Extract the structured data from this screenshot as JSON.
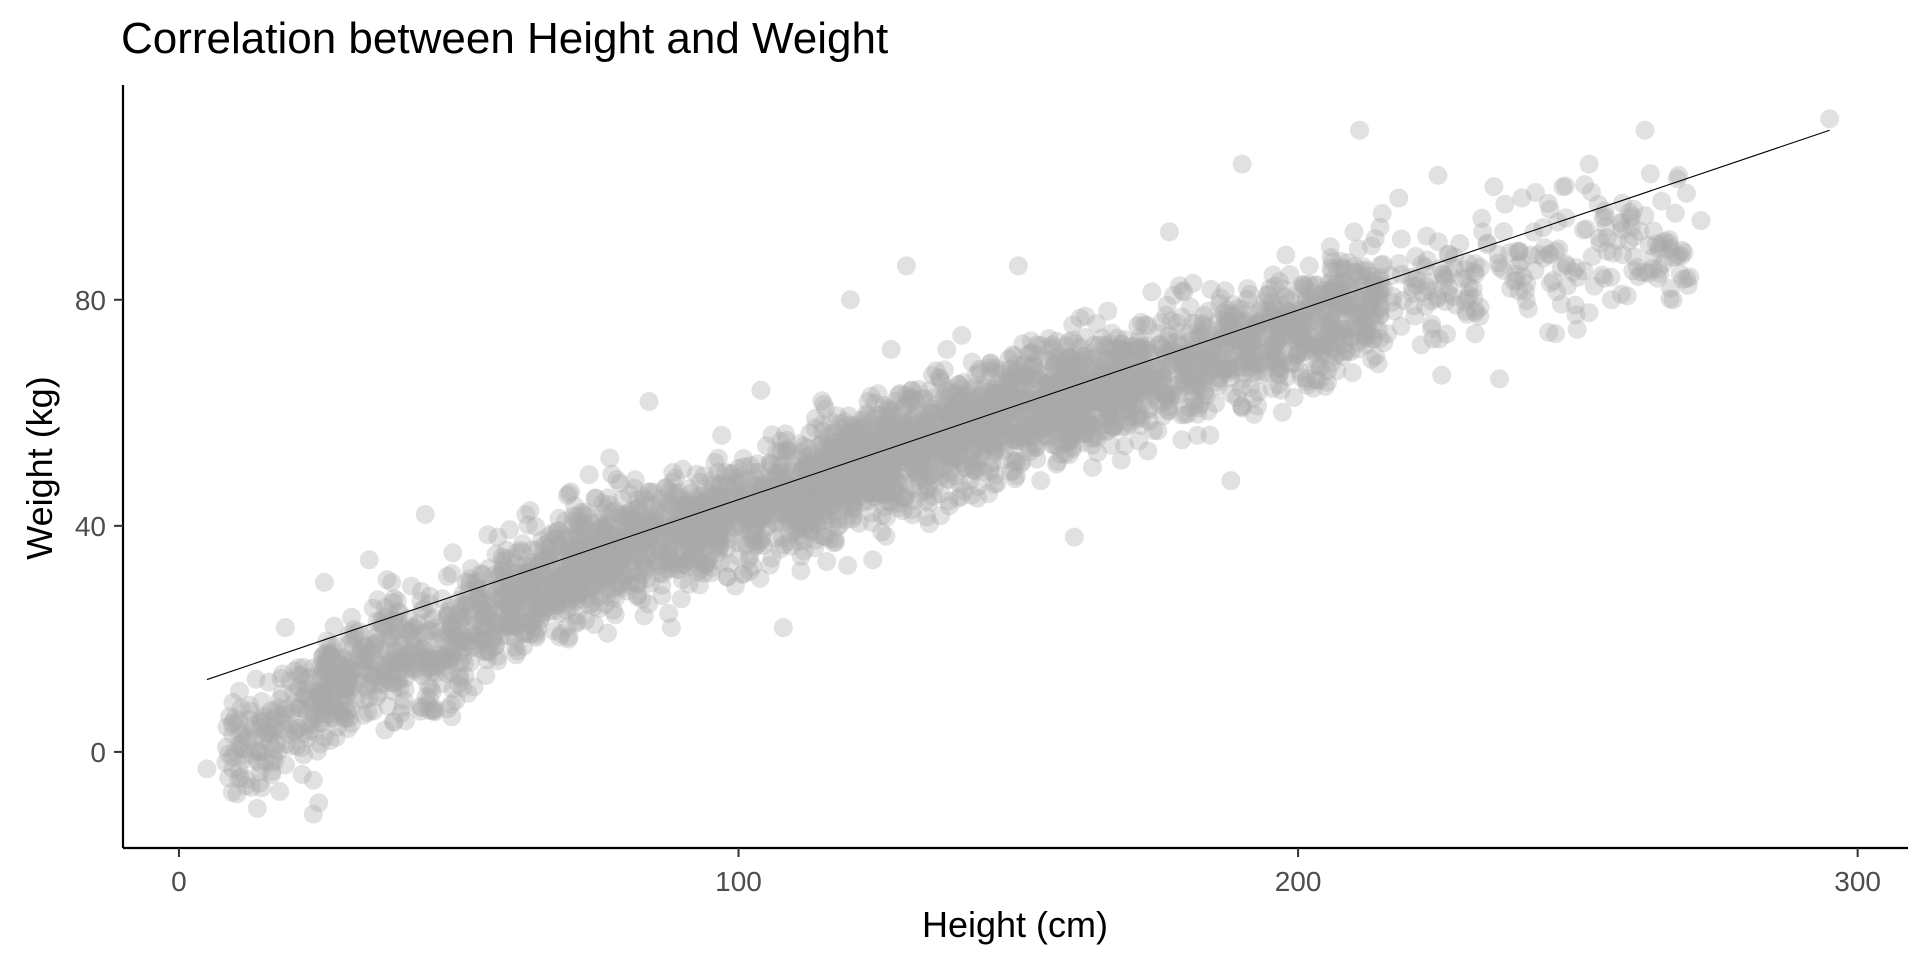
{
  "chart_data": {
    "type": "scatter",
    "title": "Correlation between Height and Weight",
    "xlabel": "Height (cm)",
    "ylabel": "Weight (kg)",
    "xlim": [
      -10,
      309
    ],
    "ylim": [
      -17,
      118
    ],
    "x_ticks": [
      0,
      100,
      200,
      300
    ],
    "y_ticks": [
      0,
      40,
      80
    ],
    "x_tick_labels": [
      "0",
      "100",
      "200",
      "300"
    ],
    "y_tick_labels": [
      "0",
      "40",
      "80"
    ],
    "grid": false,
    "legend": "none",
    "point_color": "#a9a9a9",
    "point_alpha": 0.35,
    "line_color": "#000000",
    "point_count_approx": 4000,
    "trend_line": {
      "x": [
        5,
        295
      ],
      "y": [
        12.8,
        110
      ]
    },
    "trend_summary": "Points follow a linear trend with a slight S-shaped curve: weight near -5..10 kg at heights 5-25 cm, ~15-20 kg at 40-50 cm, ~40 kg at 80-100 cm, ~55-60 kg at 130-150 cm, ~70 kg at 180 cm, ~80 kg at 210 cm, ~90 kg at 250-275 cm; spread about 8-10 kg around the trend.",
    "points": [
      [
        5,
        -3
      ],
      [
        10,
        6
      ],
      [
        12,
        -6
      ],
      [
        14,
        -10
      ],
      [
        15,
        2
      ],
      [
        17,
        4
      ],
      [
        18,
        -7
      ],
      [
        19,
        22
      ],
      [
        22,
        -4
      ],
      [
        23,
        12
      ],
      [
        24,
        -5
      ],
      [
        24,
        -11
      ],
      [
        25,
        -9
      ],
      [
        26,
        30
      ],
      [
        27,
        2
      ],
      [
        29,
        10
      ],
      [
        31,
        20
      ],
      [
        33,
        16
      ],
      [
        34,
        34
      ],
      [
        35,
        12
      ],
      [
        37,
        20
      ],
      [
        38,
        30
      ],
      [
        39,
        18
      ],
      [
        40,
        8
      ],
      [
        42,
        22
      ],
      [
        44,
        42
      ],
      [
        46,
        16
      ],
      [
        48,
        24
      ],
      [
        50,
        12
      ],
      [
        52,
        30
      ],
      [
        55,
        22
      ],
      [
        57,
        38
      ],
      [
        60,
        20
      ],
      [
        62,
        42
      ],
      [
        65,
        35
      ],
      [
        67,
        30
      ],
      [
        70,
        46
      ],
      [
        72,
        40
      ],
      [
        75,
        36
      ],
      [
        77,
        52
      ],
      [
        80,
        38
      ],
      [
        82,
        30
      ],
      [
        84,
        62
      ],
      [
        86,
        44
      ],
      [
        88,
        22
      ],
      [
        90,
        50
      ],
      [
        92,
        36
      ],
      [
        95,
        42
      ],
      [
        97,
        56
      ],
      [
        100,
        46
      ],
      [
        102,
        32
      ],
      [
        104,
        64
      ],
      [
        106,
        42
      ],
      [
        108,
        22
      ],
      [
        110,
        52
      ],
      [
        112,
        40
      ],
      [
        115,
        58
      ],
      [
        117,
        46
      ],
      [
        120,
        80
      ],
      [
        122,
        54
      ],
      [
        124,
        34
      ],
      [
        126,
        48
      ],
      [
        128,
        62
      ],
      [
        130,
        86
      ],
      [
        132,
        56
      ],
      [
        134,
        44
      ],
      [
        136,
        66
      ],
      [
        138,
        52
      ],
      [
        140,
        62
      ],
      [
        142,
        50
      ],
      [
        145,
        68
      ],
      [
        147,
        58
      ],
      [
        150,
        86
      ],
      [
        152,
        62
      ],
      [
        154,
        48
      ],
      [
        156,
        72
      ],
      [
        158,
        60
      ],
      [
        160,
        38
      ],
      [
        162,
        70
      ],
      [
        164,
        62
      ],
      [
        166,
        78
      ],
      [
        168,
        66
      ],
      [
        170,
        58
      ],
      [
        172,
        76
      ],
      [
        175,
        66
      ],
      [
        177,
        92
      ],
      [
        180,
        70
      ],
      [
        182,
        56
      ],
      [
        184,
        78
      ],
      [
        186,
        66
      ],
      [
        188,
        48
      ],
      [
        190,
        104
      ],
      [
        192,
        72
      ],
      [
        195,
        82
      ],
      [
        197,
        64
      ],
      [
        200,
        78
      ],
      [
        202,
        86
      ],
      [
        204,
        68
      ],
      [
        206,
        80
      ],
      [
        208,
        70
      ],
      [
        210,
        92
      ],
      [
        211,
        110
      ],
      [
        213,
        80
      ],
      [
        216,
        74
      ],
      [
        218,
        98
      ],
      [
        220,
        84
      ],
      [
        222,
        72
      ],
      [
        225,
        102
      ],
      [
        227,
        88
      ],
      [
        230,
        78
      ],
      [
        233,
        92
      ],
      [
        235,
        100
      ],
      [
        236,
        66
      ],
      [
        238,
        82
      ],
      [
        240,
        98
      ],
      [
        243,
        88
      ],
      [
        245,
        96
      ],
      [
        246,
        74
      ],
      [
        248,
        86
      ],
      [
        250,
        84
      ],
      [
        252,
        104
      ],
      [
        254,
        90
      ],
      [
        256,
        80
      ],
      [
        258,
        88
      ],
      [
        260,
        96
      ],
      [
        262,
        110
      ],
      [
        265,
        90
      ],
      [
        267,
        80
      ],
      [
        268,
        102
      ],
      [
        270,
        84
      ],
      [
        272,
        94
      ],
      [
        295,
        112
      ]
    ]
  }
}
